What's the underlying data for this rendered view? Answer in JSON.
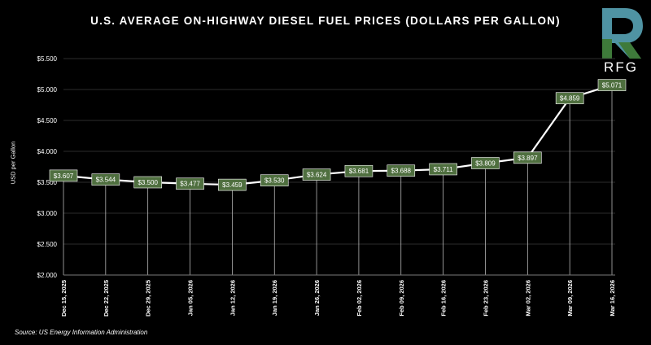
{
  "title": "U.S. AVERAGE ON-HIGHWAY DIESEL FUEL PRICES (DOLLARS PER GALLON)",
  "source": "Source: US Energy Information Administration",
  "logo": {
    "text": "RFG",
    "icon": "rfg-logo-icon"
  },
  "colors": {
    "background": "#000000",
    "line": "#ffffff",
    "label_fill": "#4f6f3f",
    "logo_green": "#3e7a3a",
    "logo_blue": "#4f93a3"
  },
  "chart_data": {
    "type": "line",
    "title": "U.S. AVERAGE ON-HIGHWAY DIESEL FUEL PRICES (DOLLARS PER GALLON)",
    "xlabel": "",
    "ylabel": "USD per Gallon",
    "ylim": [
      2.0,
      5.5
    ],
    "yticks": [
      "$2.000",
      "$2.500",
      "$3.000",
      "$3.500",
      "$4.000",
      "$4.500",
      "$5.000",
      "$5.500"
    ],
    "yticks_values": [
      2.0,
      2.5,
      3.0,
      3.5,
      4.0,
      4.5,
      5.0,
      5.5
    ],
    "grid": true,
    "categories": [
      "Dec 15, 2025",
      "Dec 22, 2025",
      "Dec 29, 2025",
      "Jan 05, 2026",
      "Jan 12, 2026",
      "Jan 19, 2026",
      "Jan 26, 2026",
      "Feb 02, 2026",
      "Feb 09, 2026",
      "Feb 16, 2026",
      "Feb 23, 2026",
      "Mar 02, 2026",
      "Mar 09, 2026",
      "Mar 16, 2026"
    ],
    "values": [
      3.607,
      3.544,
      3.5,
      3.477,
      3.459,
      3.53,
      3.624,
      3.681,
      3.688,
      3.711,
      3.809,
      3.897,
      4.859,
      5.071
    ],
    "data_labels": [
      "$3.607",
      "$3.544",
      "$3.500",
      "$3.477",
      "$3.459",
      "$3.530",
      "$3.624",
      "$3.681",
      "$3.688",
      "$3.711",
      "$3.809",
      "$3.897",
      "$4.859",
      "$5.071"
    ]
  }
}
